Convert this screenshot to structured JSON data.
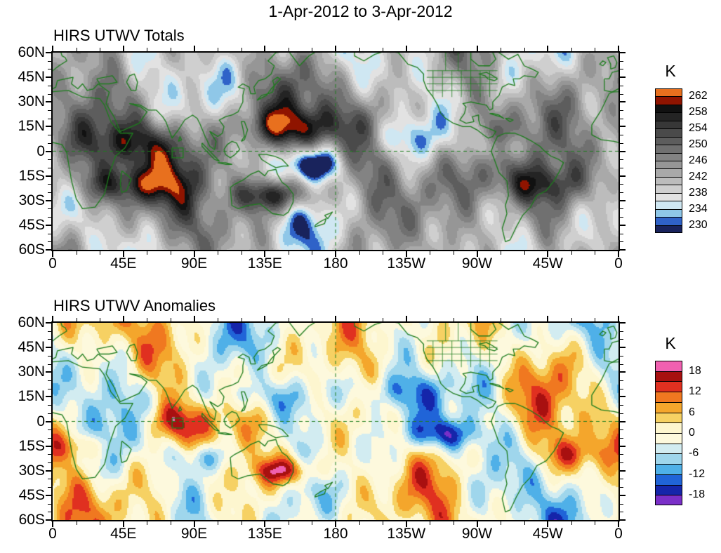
{
  "header": {
    "title": "1-Apr-2012 to 3-Apr-2012"
  },
  "chart_data": [
    {
      "type": "heatmap",
      "title": "HIRS UTWV Totals",
      "colorbar_unit": "K",
      "colorbar_tick_labels": [
        "262",
        "258",
        "254",
        "250",
        "246",
        "242",
        "238",
        "234",
        "230"
      ],
      "colorbar_colors": [
        "#e8701e",
        "#8f1400",
        "#111111",
        "#242424",
        "#373737",
        "#4a4a4a",
        "#5d5d5d",
        "#707070",
        "#838383",
        "#969696",
        "#a9a9a9",
        "#bcbcbc",
        "#cfcfcf",
        "#e2e2e2",
        "#cfe7f2",
        "#8fc7e8",
        "#2f62c8",
        "#19235c"
      ],
      "contour_levels": [
        230,
        232,
        234,
        236,
        238,
        240,
        242,
        244,
        246,
        248,
        250,
        252,
        254,
        256,
        258,
        260,
        262
      ],
      "x_tick_labels": [
        "0",
        "45E",
        "90E",
        "135E",
        "180",
        "135W",
        "90W",
        "45W",
        "0"
      ],
      "y_tick_labels": [
        "60N",
        "45N",
        "30N",
        "15N",
        "0",
        "15S",
        "30S",
        "45S",
        "60S"
      ],
      "outline_color": "#1e7d1e",
      "grid": false,
      "projection": "cylindrical equidistant, 60S-60N, longitudes 0-360",
      "description": "Filled-contour global map of HIRS upper-tropospheric water vapor brightness-temperature totals (K); grayscale between 238 and 258, reds above 258, blues below 238, green coastlines, dashed equator and dateline."
    },
    {
      "type": "heatmap",
      "title": "HIRS UTWV Anomalies",
      "colorbar_unit": "K",
      "colorbar_tick_labels": [
        "18",
        "12",
        "6",
        "0",
        "-6",
        "-12",
        "-18"
      ],
      "colorbar_colors": [
        "#f060b0",
        "#a81010",
        "#e03020",
        "#f07820",
        "#f4a62c",
        "#f6d163",
        "#fdf6cf",
        "#fdf9dd",
        "#d2ecf1",
        "#9fd6ec",
        "#4fb0e8",
        "#2064d8",
        "#1525aa",
        "#7a2fc8"
      ],
      "contour_levels": [
        -18,
        -15,
        -12,
        -9,
        -6,
        -3,
        0,
        3,
        6,
        9,
        12,
        15,
        18
      ],
      "x_tick_labels": [
        "0",
        "45E",
        "90E",
        "135E",
        "180",
        "135W",
        "90W",
        "45W",
        "0"
      ],
      "y_tick_labels": [
        "60N",
        "45N",
        "30N",
        "15N",
        "0",
        "15S",
        "30S",
        "45S",
        "60S"
      ],
      "outline_color": "#1e7d1e",
      "grid": false,
      "projection": "cylindrical equidistant, 60S-60N, longitudes 0-360",
      "description": "Filled-contour global map of HIRS upper-tropospheric water vapor brightness-temperature anomalies (K); warm colors positive, cool colors negative, green coastlines, dashed equator and dateline."
    }
  ]
}
